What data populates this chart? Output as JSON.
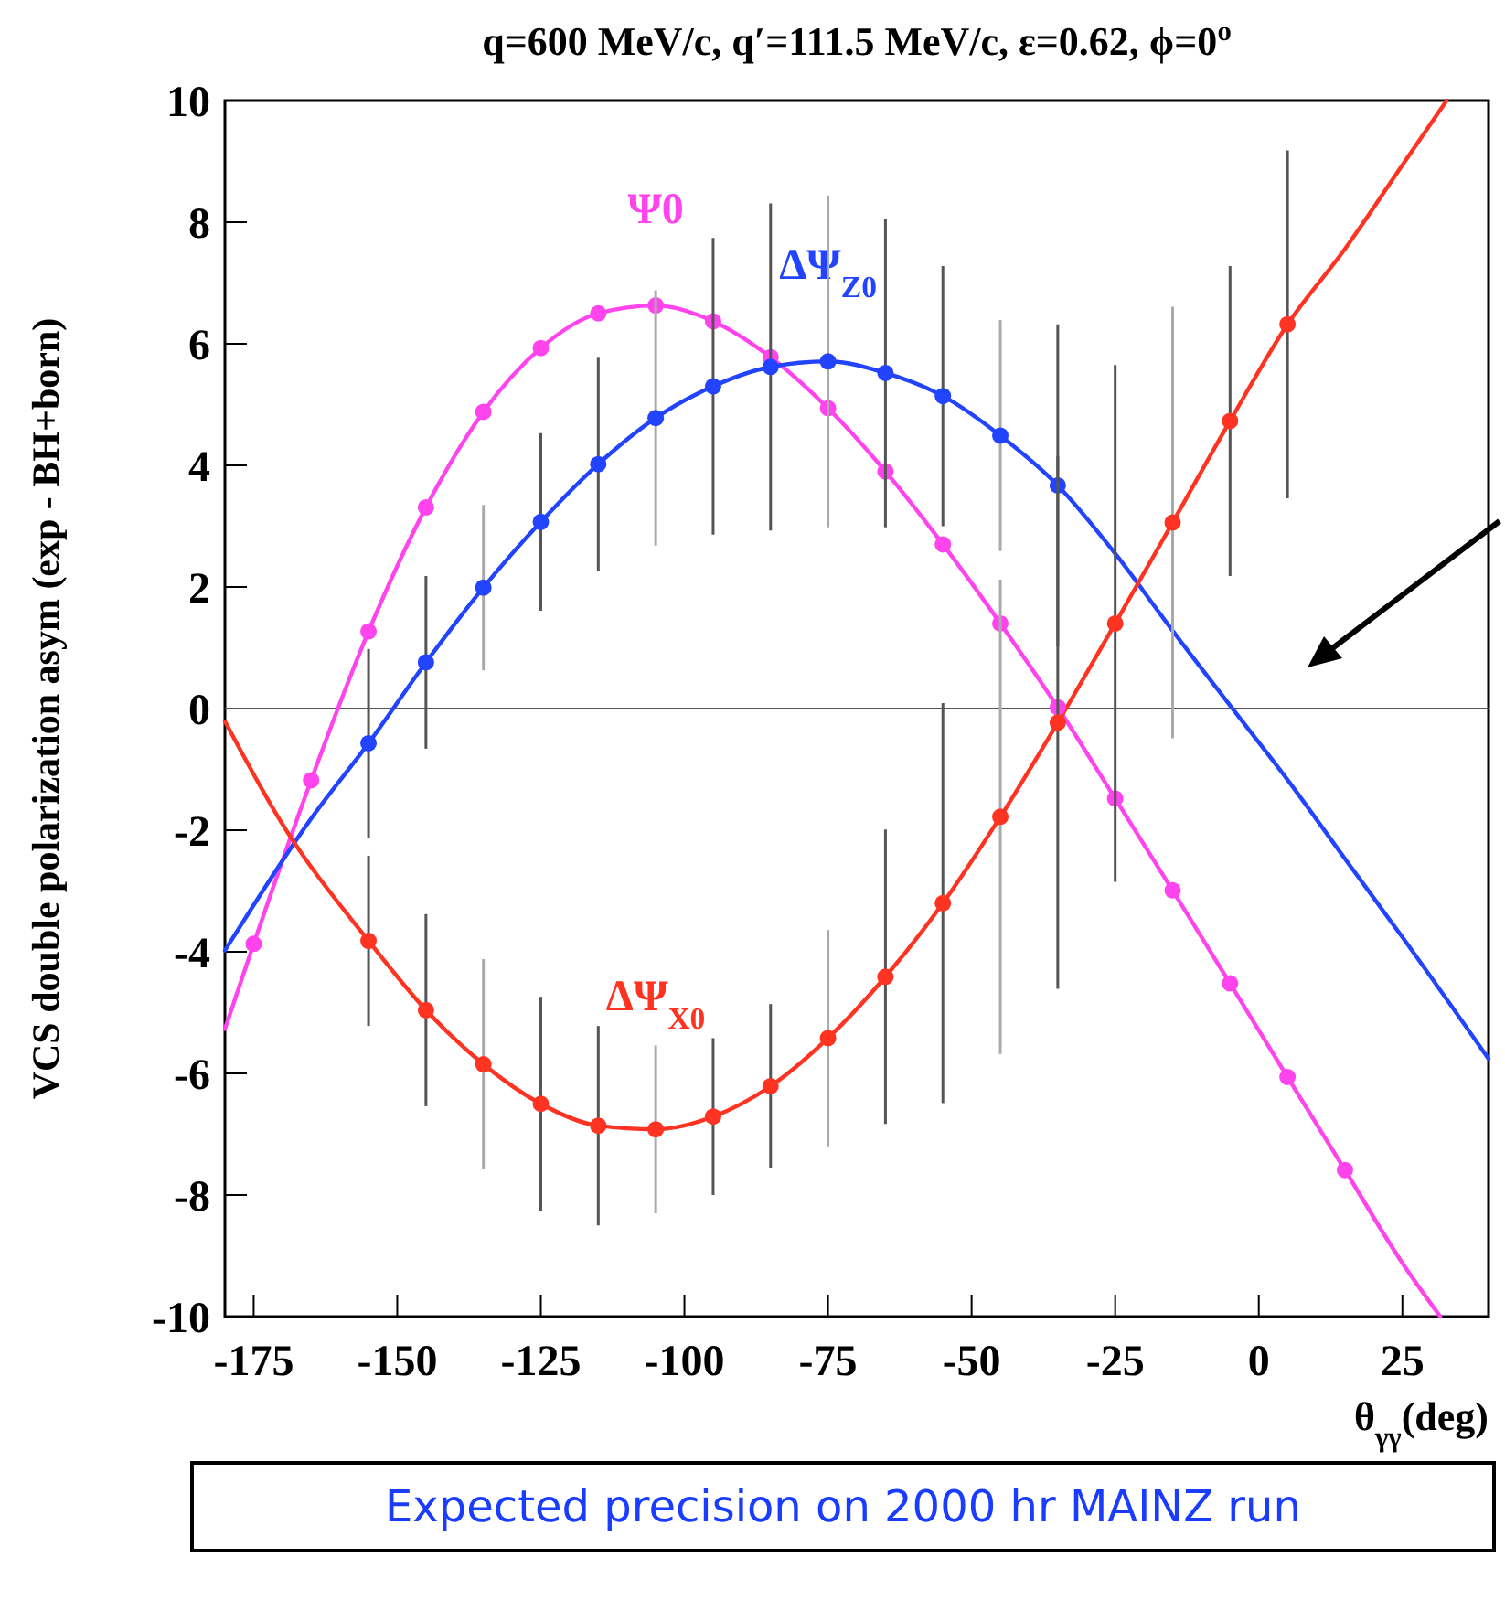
{
  "chart_data": {
    "type": "line",
    "title": "q=600 MeV/c, q′=111.5 MeV/c, ε=0.62, ϕ=0$^{o}$",
    "xlabel": "θ$_{γγ}$(deg)",
    "ylabel": "VCS double polarization asym (exp - BH+born)",
    "xlim": [
      -180,
      40
    ],
    "ylim": [
      -10,
      10
    ],
    "xticks": [
      -175,
      -150,
      -125,
      -100,
      -75,
      -50,
      -25,
      0,
      25
    ],
    "yticks": [
      -10,
      -8,
      -6,
      -4,
      -2,
      0,
      2,
      4,
      6,
      8,
      10
    ],
    "grid": false,
    "line_style": "solid",
    "ref_lines": [
      {
        "axis": "y",
        "value": 0,
        "color": "#555555"
      }
    ],
    "annotations": [
      "Expected precision on 2000 hr MAINZ run"
    ],
    "series": [
      {
        "name": "Ψ0",
        "marker": "none",
        "color": "#ff44ee",
        "x": [
          -180,
          -175,
          -165,
          -155,
          -145,
          -135,
          -125,
          -115,
          -105,
          -95,
          -85,
          -75,
          -65,
          -55,
          -45,
          -35,
          -25,
          -15,
          -5,
          5,
          15,
          25,
          31.6
        ],
        "values": [
          -5.27,
          -3.87,
          -1.18,
          1.27,
          3.31,
          4.88,
          5.93,
          6.5,
          6.63,
          6.37,
          5.78,
          4.94,
          3.9,
          2.7,
          1.4,
          0.02,
          -1.48,
          -2.99,
          -4.52,
          -6.06,
          -7.59,
          -9.12,
          -10
        ]
      },
      {
        "name": "ΔΨ$_{Z0}$",
        "marker": "none",
        "color": "#2244ff",
        "x": [
          -180,
          -165,
          -155,
          -145,
          -135,
          -125,
          -115,
          -105,
          -95,
          -85,
          -75,
          -65,
          -55,
          -45,
          -35,
          -25,
          -15,
          -5,
          5,
          15,
          25,
          40
        ],
        "values": [
          -3.98,
          -1.81,
          -0.57,
          0.76,
          1.99,
          3.07,
          4.02,
          4.78,
          5.3,
          5.62,
          5.71,
          5.52,
          5.14,
          4.49,
          3.67,
          2.55,
          1.28,
          0.05,
          -1.17,
          -2.47,
          -3.76,
          -5.76
        ]
      },
      {
        "name": "ΔΨ$_{X0}$",
        "marker": "none",
        "color": "#ff3322",
        "x": [
          -180,
          -170,
          -155,
          -145,
          -135,
          -125,
          -115,
          -105,
          -95,
          -85,
          -75,
          -65,
          -55,
          -45,
          -35,
          -25,
          -15,
          -5,
          5,
          15,
          25,
          32.7
        ],
        "values": [
          -0.21,
          -1.9,
          -3.82,
          -4.96,
          -5.85,
          -6.5,
          -6.86,
          -6.92,
          -6.71,
          -6.21,
          -5.42,
          -4.41,
          -3.2,
          -1.78,
          -0.23,
          1.4,
          3.06,
          4.73,
          6.32,
          7.56,
          8.94,
          10
        ]
      },
      {
        "type": "scatter",
        "marker": "circle",
        "color": "#ff44ee",
        "x": [
          -175,
          -165,
          -155,
          -145,
          -135,
          -125,
          -115,
          -105,
          -95,
          -85,
          -75,
          -65,
          -55,
          -45,
          -35,
          -25,
          -15,
          -5,
          5,
          15
        ],
        "values": [
          -3.87,
          -1.18,
          1.27,
          3.31,
          4.88,
          5.93,
          6.5,
          6.63,
          6.37,
          5.78,
          4.94,
          3.9,
          2.7,
          1.4,
          0.02,
          -1.48,
          -2.99,
          -4.52,
          -6.06,
          -7.59
        ]
      },
      {
        "type": "scatter",
        "marker": "circle",
        "color": "#2244ff",
        "x": [
          -155,
          -145,
          -135,
          -125,
          -115,
          -105,
          -95,
          -85,
          -75,
          -65,
          -55,
          -45,
          -35
        ],
        "values": [
          -0.57,
          0.76,
          1.99,
          3.07,
          4.02,
          4.78,
          5.3,
          5.62,
          5.71,
          5.52,
          5.14,
          4.49,
          3.67
        ],
        "errors": [
          1.55,
          1.42,
          1.36,
          1.46,
          1.75,
          2.1,
          2.44,
          2.69,
          2.73,
          2.54,
          2.14,
          1.9,
          2.65
        ]
      },
      {
        "type": "scatter",
        "marker": "circle",
        "color": "#ff3322",
        "x": [
          -155,
          -145,
          -135,
          -125,
          -115,
          -105,
          -95,
          -85,
          -75,
          -65,
          -55,
          -45,
          -35,
          -25,
          -15,
          -5,
          5
        ],
        "values": [
          -3.82,
          -4.96,
          -5.85,
          -6.5,
          -6.86,
          -6.92,
          -6.71,
          -6.21,
          -5.42,
          -4.41,
          -3.2,
          -1.78,
          -0.23,
          1.4,
          3.06,
          4.73,
          6.32
        ],
        "errors": [
          1.4,
          1.58,
          1.73,
          1.76,
          1.64,
          1.38,
          1.29,
          1.35,
          1.78,
          2.42,
          3.29,
          3.9,
          4.38,
          4.25,
          3.55,
          2.55,
          2.86
        ]
      }
    ]
  }
}
